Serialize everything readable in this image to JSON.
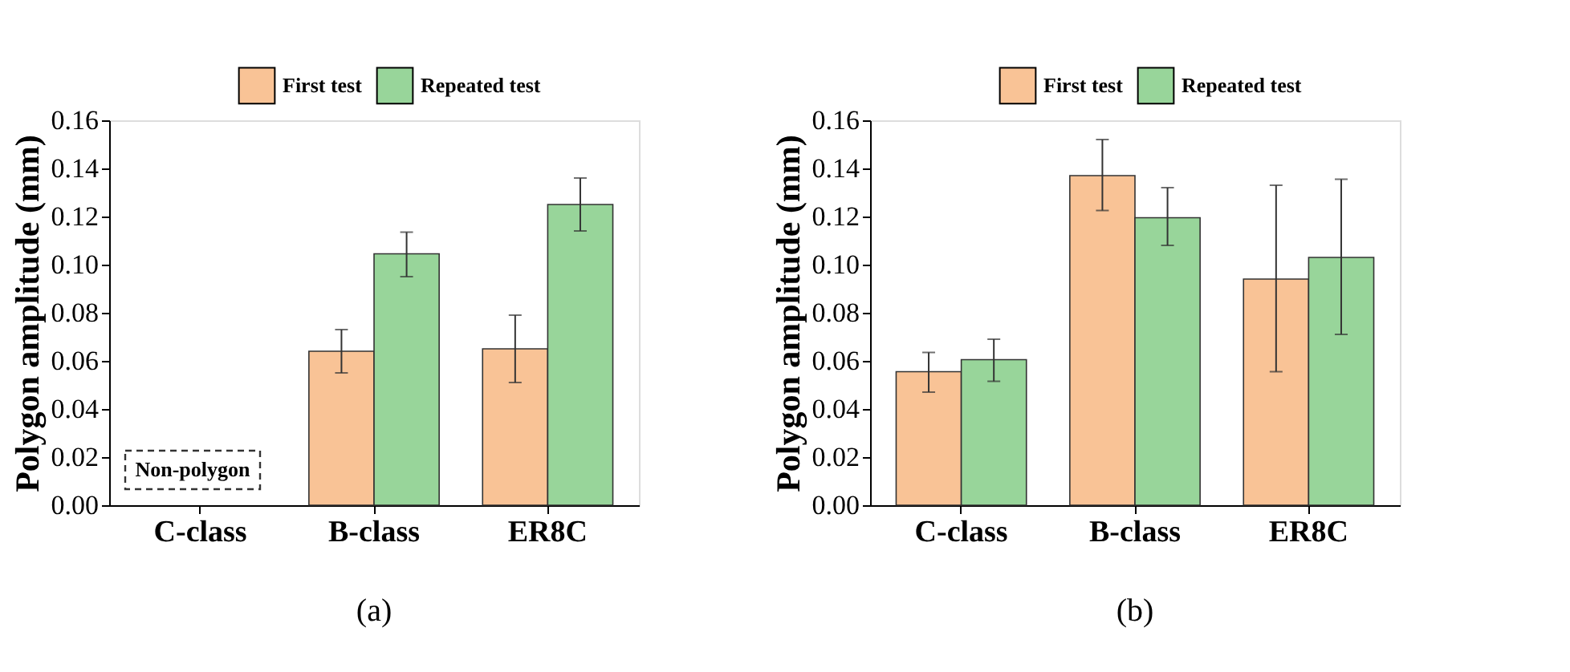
{
  "chart_data": [
    {
      "type": "bar",
      "ylabel": "Polygon amplitude (mm)",
      "categories": [
        "C-class",
        "B-class",
        "ER8C"
      ],
      "ylim": [
        0,
        0.16
      ],
      "yticks": [
        {
          "value": 0,
          "label": "0.00"
        },
        {
          "value": 0.02,
          "label": "0.02"
        },
        {
          "value": 0.04,
          "label": "0.04"
        },
        {
          "value": 0.06,
          "label": "0.06"
        },
        {
          "value": 0.08,
          "label": "0.08"
        },
        {
          "value": 0.1,
          "label": "0.10"
        },
        {
          "value": 0.12,
          "label": "0.12"
        },
        {
          "value": 0.14,
          "label": "0.14"
        },
        {
          "value": 0.16,
          "label": "0.16"
        }
      ],
      "grid": false,
      "legend": "top right",
      "series": [
        {
          "name": "First test",
          "color": "#f9c396",
          "values": [
            null,
            0.064,
            0.065
          ],
          "errors": [
            null,
            [
              0.055,
              0.073
            ],
            [
              0.051,
              0.079
            ]
          ]
        },
        {
          "name": "Repeated test",
          "color": "#98d59a",
          "values": [
            null,
            0.1045,
            0.125
          ],
          "errors": [
            null,
            [
              0.095,
              0.1135
            ],
            [
              0.114,
              0.136
            ]
          ]
        }
      ],
      "annotations": [
        "Non-polygon",
        "(a)"
      ]
    },
    {
      "type": "bar",
      "ylabel": "Polygon amplitude (mm)",
      "categories": [
        "C-class",
        "B-class",
        "ER8C"
      ],
      "ylim": [
        0,
        0.16
      ],
      "yticks": [
        {
          "value": 0,
          "label": "0.00"
        },
        {
          "value": 0.02,
          "label": "0.02"
        },
        {
          "value": 0.04,
          "label": "0.04"
        },
        {
          "value": 0.06,
          "label": "0.06"
        },
        {
          "value": 0.08,
          "label": "0.08"
        },
        {
          "value": 0.1,
          "label": "0.10"
        },
        {
          "value": 0.12,
          "label": "0.12"
        },
        {
          "value": 0.14,
          "label": "0.14"
        },
        {
          "value": 0.16,
          "label": "0.16"
        }
      ],
      "grid": false,
      "legend": "top right",
      "series": [
        {
          "name": "First test",
          "color": "#f9c396",
          "values": [
            0.0555,
            0.137,
            0.094
          ],
          "errors": [
            [
              0.047,
              0.0635
            ],
            [
              0.1225,
              0.152
            ],
            [
              0.0555,
              0.133
            ]
          ]
        },
        {
          "name": "Repeated test",
          "color": "#98d59a",
          "values": [
            0.0605,
            0.1195,
            0.103
          ],
          "errors": [
            [
              0.0515,
              0.069
            ],
            [
              0.108,
              0.132
            ],
            [
              0.071,
              0.1355
            ]
          ]
        }
      ],
      "annotations": [
        "(b)"
      ]
    }
  ]
}
